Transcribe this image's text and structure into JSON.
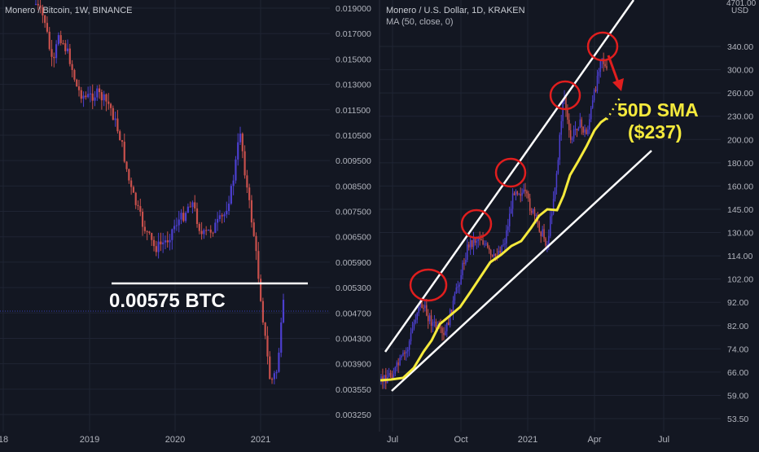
{
  "colors": {
    "background": "#131722",
    "grid": "#1f2433",
    "axis_text": "#b2b5be",
    "title_text": "#c8cbd2",
    "candle_up": "#4c3fcf",
    "candle_down": "#c8504c",
    "annotation": "#ffffff",
    "ma_line": "#f5ea3c",
    "circle": "#e01e1e",
    "price_line": "#3a3fb0"
  },
  "left_panel": {
    "title": "Monero / Bitcoin, 1W, BINANCE",
    "annotation_label": "0.00575 BTC"
  },
  "right_panel": {
    "title": "Monero / U.S. Dollar, 1D, KRAKEN",
    "indicator": "MA (50, close, 0)",
    "axis_corner_value": "4701.00",
    "axis_corner_unit": "USD",
    "sma_label_line1": "50D SMA",
    "sma_label_line2": "($237)"
  },
  "chart_data": [
    {
      "type": "candlestick",
      "title": "Monero / Bitcoin, 1W, BINANCE",
      "y_ticks": [
        "0.019000",
        "0.017000",
        "0.015000",
        "0.013000",
        "0.011500",
        "0.010500",
        "0.009500",
        "0.008500",
        "0.007500",
        "0.006500",
        "0.005900",
        "0.005300",
        "0.004700",
        "0.004300",
        "0.003900",
        "0.003550",
        "0.003250"
      ],
      "x_ticks": [
        "18",
        "2019",
        "2020",
        "2021"
      ],
      "ylim": [
        0.00325,
        0.019
      ],
      "scale": "log",
      "horizontal_line": 0.00575,
      "annotation": "0.00575 BTC",
      "close_path": [
        {
          "t": "2018-09",
          "v": 0.0185
        },
        {
          "t": "2018-10",
          "v": 0.0155
        },
        {
          "t": "2018-11",
          "v": 0.014
        },
        {
          "t": "2018-12",
          "v": 0.015
        },
        {
          "t": "2019-01",
          "v": 0.0133
        },
        {
          "t": "2019-02",
          "v": 0.0128
        },
        {
          "t": "2019-03",
          "v": 0.012
        },
        {
          "t": "2019-04",
          "v": 0.011
        },
        {
          "t": "2019-05",
          "v": 0.0085
        },
        {
          "t": "2019-06",
          "v": 0.0078
        },
        {
          "t": "2019-07",
          "v": 0.0072
        },
        {
          "t": "2019-08",
          "v": 0.0068
        },
        {
          "t": "2019-09",
          "v": 0.0074
        },
        {
          "t": "2019-10",
          "v": 0.0071
        },
        {
          "t": "2019-11",
          "v": 0.0078
        },
        {
          "t": "2020-01",
          "v": 0.0074
        },
        {
          "t": "2020-03",
          "v": 0.008
        },
        {
          "t": "2020-05",
          "v": 0.0072
        },
        {
          "t": "2020-06",
          "v": 0.0078
        },
        {
          "t": "2020-07",
          "v": 0.009
        },
        {
          "t": "2020-08",
          "v": 0.011
        },
        {
          "t": "2020-09",
          "v": 0.0095
        },
        {
          "t": "2020-10",
          "v": 0.0075
        },
        {
          "t": "2020-11",
          "v": 0.0062
        },
        {
          "t": "2020-12",
          "v": 0.005
        },
        {
          "t": "2021-01",
          "v": 0.0042
        },
        {
          "t": "2021-02",
          "v": 0.0038
        },
        {
          "t": "2021-03",
          "v": 0.0046
        },
        {
          "t": "2021-04",
          "v": 0.0055
        }
      ]
    },
    {
      "type": "line",
      "title": "Monero / U.S. Dollar, 1D, KRAKEN",
      "indicator": "MA (50, close, 0)",
      "y_ticks": [
        "340.00",
        "300.00",
        "260.00",
        "230.00",
        "200.00",
        "180.00",
        "160.00",
        "145.00",
        "130.00",
        "114.00",
        "102.00",
        "92.00",
        "82.00",
        "74.00",
        "66.00",
        "59.00",
        "53.50"
      ],
      "x_ticks": [
        "Jul",
        "Oct",
        "2021",
        "Apr",
        "Jul"
      ],
      "ylim": [
        50,
        420
      ],
      "scale": "log",
      "price": [
        {
          "t": "2020-06",
          "v": 66
        },
        {
          "t": "2020-07",
          "v": 70
        },
        {
          "t": "2020-08",
          "v": 92
        },
        {
          "t": "2020-09",
          "v": 85
        },
        {
          "t": "2020-10",
          "v": 115
        },
        {
          "t": "2020-11",
          "v": 130
        },
        {
          "t": "2020-12",
          "v": 160
        },
        {
          "t": "2021-01",
          "v": 140
        },
        {
          "t": "2021-02",
          "v": 250
        },
        {
          "t": "2021-03",
          "v": 220
        },
        {
          "t": "2021-04",
          "v": 350
        },
        {
          "t": "2021-04-20",
          "v": 270
        }
      ],
      "ma50": [
        {
          "t": "2020-06",
          "v": 66
        },
        {
          "t": "2020-07",
          "v": 68
        },
        {
          "t": "2020-08",
          "v": 78
        },
        {
          "t": "2020-09",
          "v": 88
        },
        {
          "t": "2020-10",
          "v": 100
        },
        {
          "t": "2020-11",
          "v": 118
        },
        {
          "t": "2020-12",
          "v": 140
        },
        {
          "t": "2021-01",
          "v": 152
        },
        {
          "t": "2021-02",
          "v": 185
        },
        {
          "t": "2021-03",
          "v": 210
        },
        {
          "t": "2021-04",
          "v": 237
        }
      ],
      "sma_annotation": "50D SMA ($237)"
    }
  ]
}
